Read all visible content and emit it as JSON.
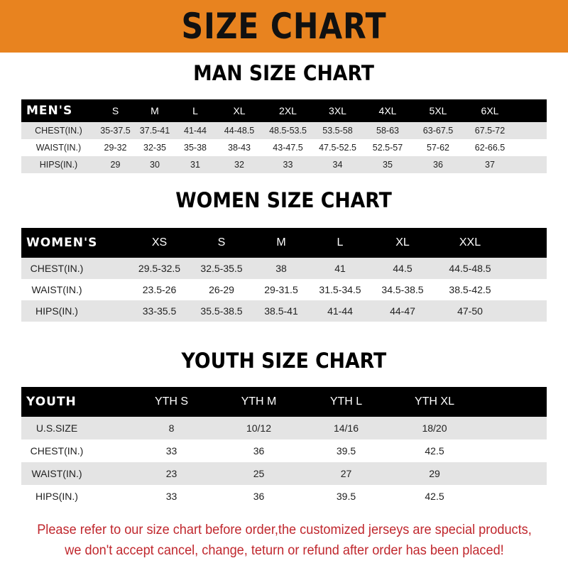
{
  "banner": {
    "title": "SIZE CHART",
    "color": "#e8831f"
  },
  "men": {
    "title": "MAN SIZE CHART",
    "header": [
      "MEN'S",
      "S",
      "M",
      "L",
      "XL",
      "2XL",
      "3XL",
      "4XL",
      "5XL",
      "6XL"
    ],
    "rows": [
      [
        "CHEST(IN.)",
        "35-37.5",
        "37.5-41",
        "41-44",
        "44-48.5",
        "48.5-53.5",
        "53.5-58",
        "58-63",
        "63-67.5",
        "67.5-72"
      ],
      [
        "WAIST(IN.)",
        "29-32",
        "32-35",
        "35-38",
        "38-43",
        "43-47.5",
        "47.5-52.5",
        "52.5-57",
        "57-62",
        "62-66.5"
      ],
      [
        "HIPS(IN.)",
        "29",
        "30",
        "31",
        "32",
        "33",
        "34",
        "35",
        "36",
        "37"
      ]
    ]
  },
  "women": {
    "title": "WOMEN SIZE CHART",
    "header": [
      "WOMEN'S",
      "XS",
      "S",
      "M",
      "L",
      "XL",
      "XXL"
    ],
    "rows": [
      [
        "CHEST(IN.)",
        "29.5-32.5",
        "32.5-35.5",
        "38",
        "41",
        "44.5",
        "44.5-48.5"
      ],
      [
        "WAIST(IN.)",
        "23.5-26",
        "26-29",
        "29-31.5",
        "31.5-34.5",
        "34.5-38.5",
        "38.5-42.5"
      ],
      [
        "HIPS(IN.)",
        "33-35.5",
        "35.5-38.5",
        "38.5-41",
        "41-44",
        "44-47",
        "47-50"
      ]
    ]
  },
  "youth": {
    "title": "YOUTH SIZE CHART",
    "header": [
      "YOUTH",
      "YTH S",
      "YTH M",
      "YTH L",
      "YTH XL"
    ],
    "rows": [
      [
        "U.S.SIZE",
        "8",
        "10/12",
        "14/16",
        "18/20"
      ],
      [
        "CHEST(IN.)",
        "33",
        "36",
        "39.5",
        "42.5"
      ],
      [
        "WAIST(IN.)",
        "23",
        "25",
        "27",
        "29"
      ],
      [
        "HIPS(IN.)",
        "33",
        "36",
        "39.5",
        "42.5"
      ]
    ]
  },
  "notice": {
    "line1": "Please refer to our size chart before order,the customized jerseys are special products,",
    "line2": "we don't accept cancel, change, teturn or refund after order has been placed!",
    "color": "#c0272d"
  }
}
